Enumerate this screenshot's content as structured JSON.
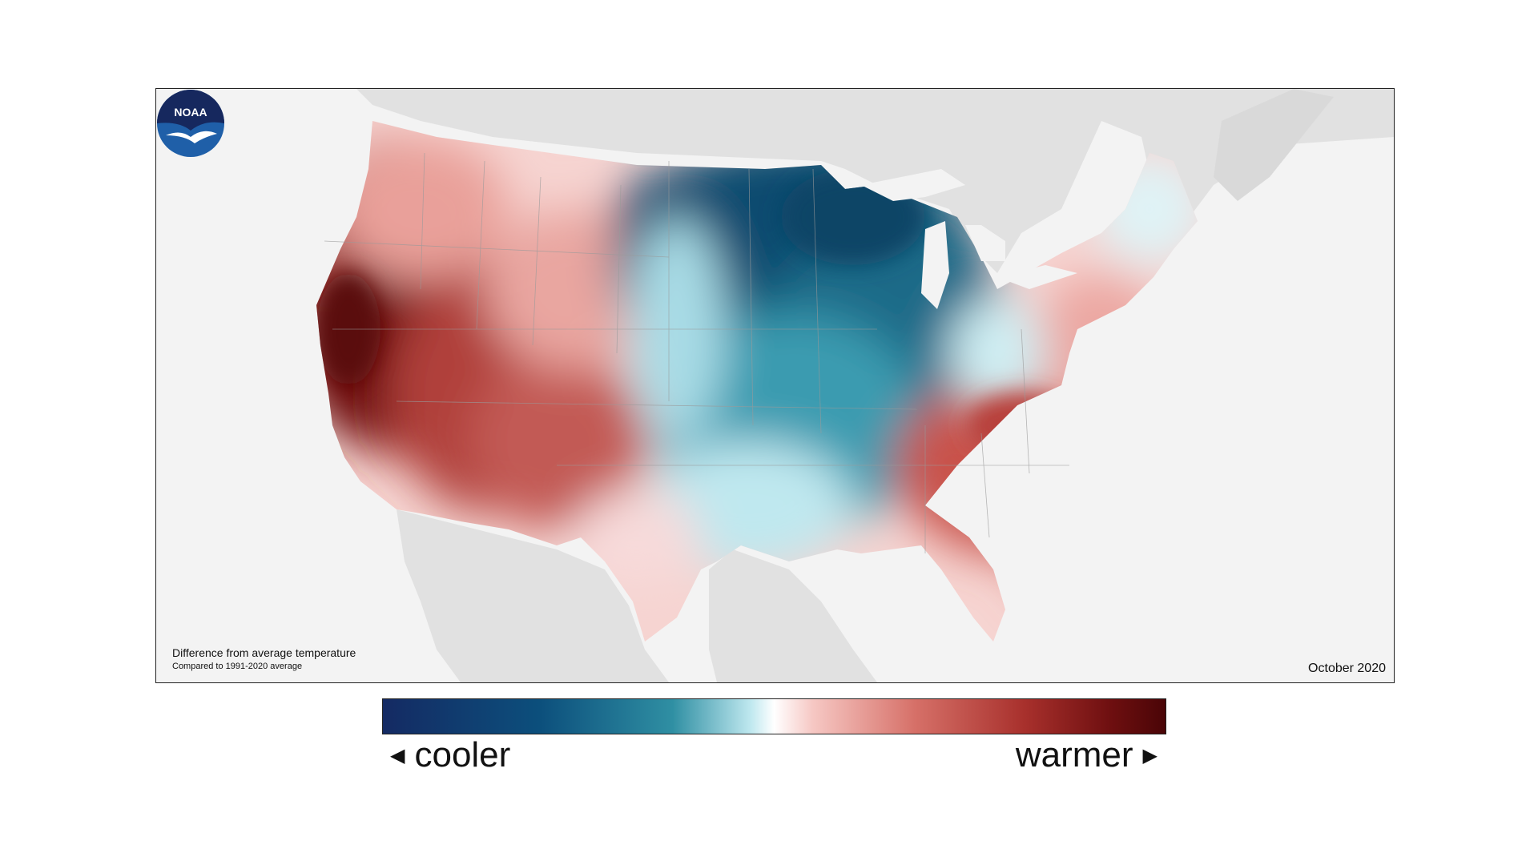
{
  "map": {
    "caption_title": "Difference from average temperature",
    "caption_subtitle": "Compared to 1991-2020 average",
    "date": "October 2020",
    "logo_text": "NOAA",
    "regions": {
      "west_coast": "warmer",
      "southwest": "warmer",
      "northern_plains": "cooler",
      "upper_midwest": "cooler",
      "southern_plains": "cooler",
      "southeast": "warmer",
      "northeast": "slightly warmer",
      "new_england_north": "slightly cooler"
    }
  },
  "legend": {
    "cool_label": "cooler",
    "warm_label": "warmer",
    "cool_arrow": "◀",
    "warm_arrow": "▶",
    "colors": [
      "#142a63",
      "#0c4f7c",
      "#2f8fa3",
      "#bfe8ef",
      "#ffffff",
      "#f6c7c3",
      "#d67068",
      "#a8302c",
      "#4a0507"
    ]
  }
}
